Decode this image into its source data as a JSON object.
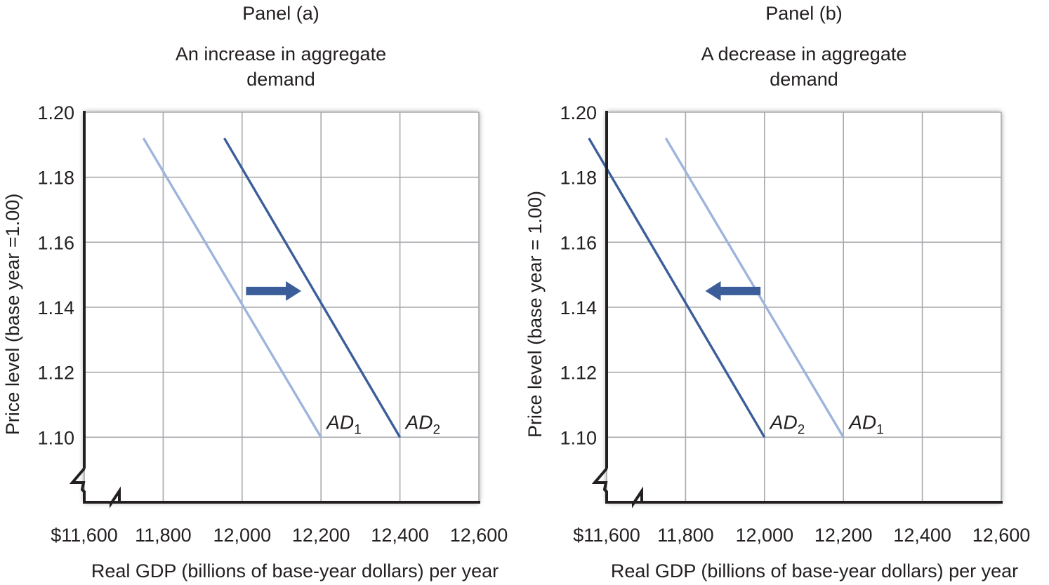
{
  "colors": {
    "grid": "#a7a9ac",
    "axis": "#231f20",
    "original_curve": "#9fb4dc",
    "new_curve": "#3b5e9b",
    "arrow": "#3b5e9b"
  },
  "chart_data": [
    {
      "type": "line",
      "panel_label": "Panel (a)",
      "title": "An increase in aggregate demand",
      "title_lines": [
        "An increase in aggregate",
        "demand"
      ],
      "xlabel": "Real GDP (billions of base-year dollars) per year",
      "ylabel": "Price level (base year =1.00)",
      "x_ticks": [
        "$11,600",
        "11,800",
        "12,000",
        "12,200",
        "12,400",
        "12,600"
      ],
      "x_tick_values": [
        11600,
        11800,
        12000,
        12200,
        12400,
        12600
      ],
      "y_ticks": [
        "1.10",
        "1.12",
        "1.14",
        "1.16",
        "1.18",
        "1.20"
      ],
      "y_tick_values": [
        1.1,
        1.12,
        1.14,
        1.16,
        1.18,
        1.2
      ],
      "xlim": [
        11600,
        12600
      ],
      "ylim": [
        1.08,
        1.2
      ],
      "axis_break": true,
      "grid": true,
      "series": [
        {
          "name": "AD1",
          "label_main": "AD",
          "label_sub": "1",
          "style": "original",
          "x": [
            11750,
            12200
          ],
          "y": [
            1.192,
            1.1
          ]
        },
        {
          "name": "AD2",
          "label_main": "AD",
          "label_sub": "2",
          "style": "new",
          "x": [
            11955,
            12400
          ],
          "y": [
            1.192,
            1.1
          ]
        }
      ],
      "shift": {
        "direction": "right",
        "from_x": 12010,
        "to_x": 12150,
        "y": 1.145
      }
    },
    {
      "type": "line",
      "panel_label": "Panel (b)",
      "title": "A decrease in aggregate demand",
      "title_lines": [
        "A decrease in aggregate",
        "demand"
      ],
      "xlabel": "Real GDP (billions of base-year dollars) per year",
      "ylabel": "Price level (base year = 1.00)",
      "x_ticks": [
        "$11,600",
        "11,800",
        "12,000",
        "12,200",
        "12,400",
        "12,600"
      ],
      "x_tick_values": [
        11600,
        11800,
        12000,
        12200,
        12400,
        12600
      ],
      "y_ticks": [
        "1.10",
        "1.12",
        "1.14",
        "1.16",
        "1.18",
        "1.20"
      ],
      "y_tick_values": [
        1.1,
        1.12,
        1.14,
        1.16,
        1.18,
        1.2
      ],
      "xlim": [
        11600,
        12600
      ],
      "ylim": [
        1.08,
        1.2
      ],
      "axis_break": true,
      "grid": true,
      "series": [
        {
          "name": "AD2",
          "label_main": "AD",
          "label_sub": "2",
          "style": "new",
          "x": [
            11555,
            12000
          ],
          "y": [
            1.192,
            1.1
          ]
        },
        {
          "name": "AD1",
          "label_main": "AD",
          "label_sub": "1",
          "style": "original",
          "x": [
            11750,
            12200
          ],
          "y": [
            1.192,
            1.1
          ]
        }
      ],
      "shift": {
        "direction": "left",
        "from_x": 11990,
        "to_x": 11850,
        "y": 1.145
      }
    }
  ]
}
